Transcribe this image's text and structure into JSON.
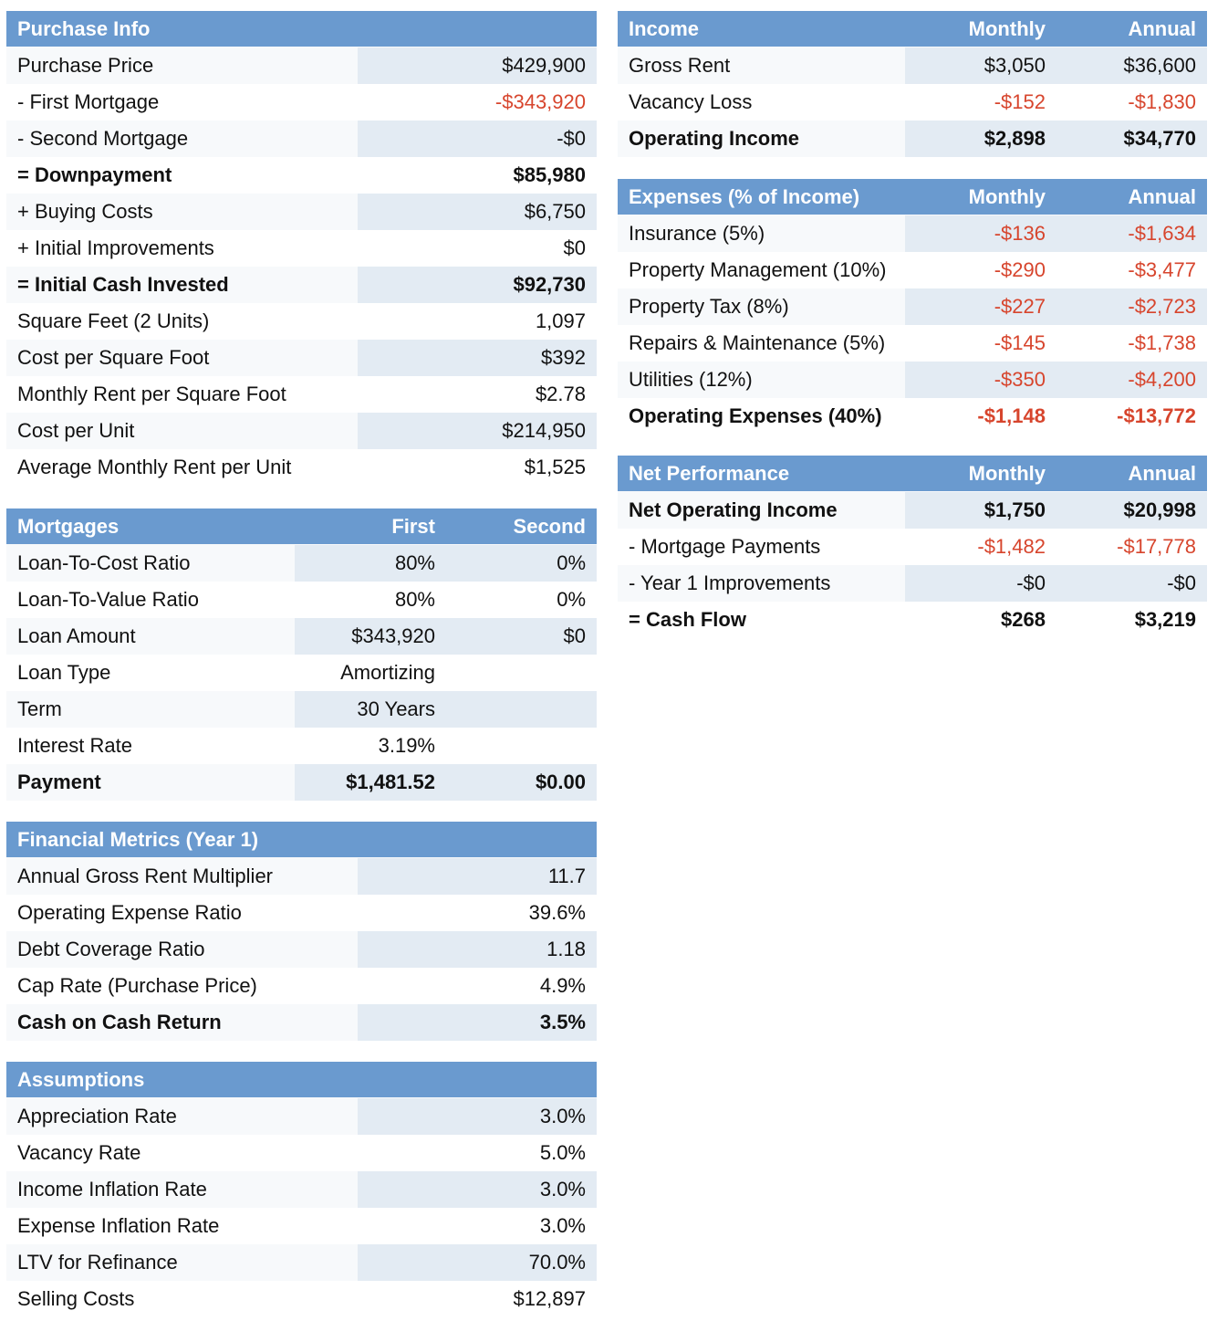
{
  "purchase": {
    "title": "Purchase Info",
    "rows": [
      {
        "label": "Purchase Price",
        "value": "$429,900"
      },
      {
        "label": "- First Mortgage",
        "value": "-$343,920"
      },
      {
        "label": "- Second Mortgage",
        "value": "-$0"
      },
      {
        "label": "= Downpayment",
        "value": "$85,980"
      },
      {
        "label": "+ Buying Costs",
        "value": "$6,750"
      },
      {
        "label": "+ Initial Improvements",
        "value": "$0"
      },
      {
        "label": "= Initial Cash Invested",
        "value": "$92,730"
      },
      {
        "label": "Square Feet (2 Units)",
        "value": "1,097"
      },
      {
        "label": "Cost per Square Foot",
        "value": "$392"
      },
      {
        "label": "Monthly Rent per Square Foot",
        "value": "$2.78"
      },
      {
        "label": "Cost per Unit",
        "value": "$214,950"
      },
      {
        "label": "Average Monthly Rent per Unit",
        "value": "$1,525"
      }
    ]
  },
  "mortgages": {
    "title": "Mortgages",
    "col1": "First",
    "col2": "Second",
    "rows": [
      {
        "label": "Loan-To-Cost Ratio",
        "first": "80%",
        "second": "0%"
      },
      {
        "label": "Loan-To-Value Ratio",
        "first": "80%",
        "second": "0%"
      },
      {
        "label": "Loan Amount",
        "first": "$343,920",
        "second": "$0"
      },
      {
        "label": "Loan Type",
        "first": "Amortizing",
        "second": ""
      },
      {
        "label": "Term",
        "first": "30 Years",
        "second": ""
      },
      {
        "label": "Interest Rate",
        "first": "3.19%",
        "second": ""
      },
      {
        "label": "Payment",
        "first": "$1,481.52",
        "second": "$0.00"
      }
    ]
  },
  "metrics": {
    "title": "Financial Metrics (Year 1)",
    "rows": [
      {
        "label": "Annual Gross Rent Multiplier",
        "value": "11.7"
      },
      {
        "label": "Operating Expense Ratio",
        "value": "39.6%"
      },
      {
        "label": "Debt Coverage Ratio",
        "value": "1.18"
      },
      {
        "label": "Cap Rate (Purchase Price)",
        "value": "4.9%"
      },
      {
        "label": "Cash on Cash Return",
        "value": "3.5%"
      }
    ]
  },
  "assumptions": {
    "title": "Assumptions",
    "rows": [
      {
        "label": "Appreciation Rate",
        "value": "3.0%"
      },
      {
        "label": "Vacancy Rate",
        "value": "5.0%"
      },
      {
        "label": "Income Inflation Rate",
        "value": "3.0%"
      },
      {
        "label": "Expense Inflation Rate",
        "value": "3.0%"
      },
      {
        "label": "LTV for Refinance",
        "value": "70.0%"
      },
      {
        "label": "Selling Costs",
        "value": "$12,897"
      }
    ]
  },
  "income": {
    "title": "Income",
    "col1": "Monthly",
    "col2": "Annual",
    "rows": [
      {
        "label": "Gross Rent",
        "monthly": "$3,050",
        "annual": "$36,600"
      },
      {
        "label": "Vacancy Loss",
        "monthly": "-$152",
        "annual": "-$1,830"
      },
      {
        "label": "Operating Income",
        "monthly": "$2,898",
        "annual": "$34,770"
      }
    ]
  },
  "expenses": {
    "title": "Expenses (% of Income)",
    "col1": "Monthly",
    "col2": "Annual",
    "rows": [
      {
        "label": "Insurance (5%)",
        "monthly": "-$136",
        "annual": "-$1,634"
      },
      {
        "label": "Property Management (10%)",
        "monthly": "-$290",
        "annual": "-$3,477"
      },
      {
        "label": "Property Tax (8%)",
        "monthly": "-$227",
        "annual": "-$2,723"
      },
      {
        "label": "Repairs & Maintenance (5%)",
        "monthly": "-$145",
        "annual": "-$1,738"
      },
      {
        "label": "Utilities (12%)",
        "monthly": "-$350",
        "annual": "-$4,200"
      },
      {
        "label": "Operating Expenses (40%)",
        "monthly": "-$1,148",
        "annual": "-$13,772"
      }
    ]
  },
  "net": {
    "title": "Net Performance",
    "col1": "Monthly",
    "col2": "Annual",
    "rows": [
      {
        "label": "Net Operating Income",
        "monthly": "$1,750",
        "annual": "$20,998"
      },
      {
        "label": "- Mortgage Payments",
        "monthly": "-$1,482",
        "annual": "-$17,778"
      },
      {
        "label": "- Year 1 Improvements",
        "monthly": "-$0",
        "annual": "-$0"
      },
      {
        "label": "= Cash Flow",
        "monthly": "$268",
        "annual": "$3,219"
      }
    ]
  },
  "colors": {
    "header_bg": "#6a9acf",
    "negative_text": "#d7452d",
    "shaded_cell": "#e3ebf3"
  }
}
